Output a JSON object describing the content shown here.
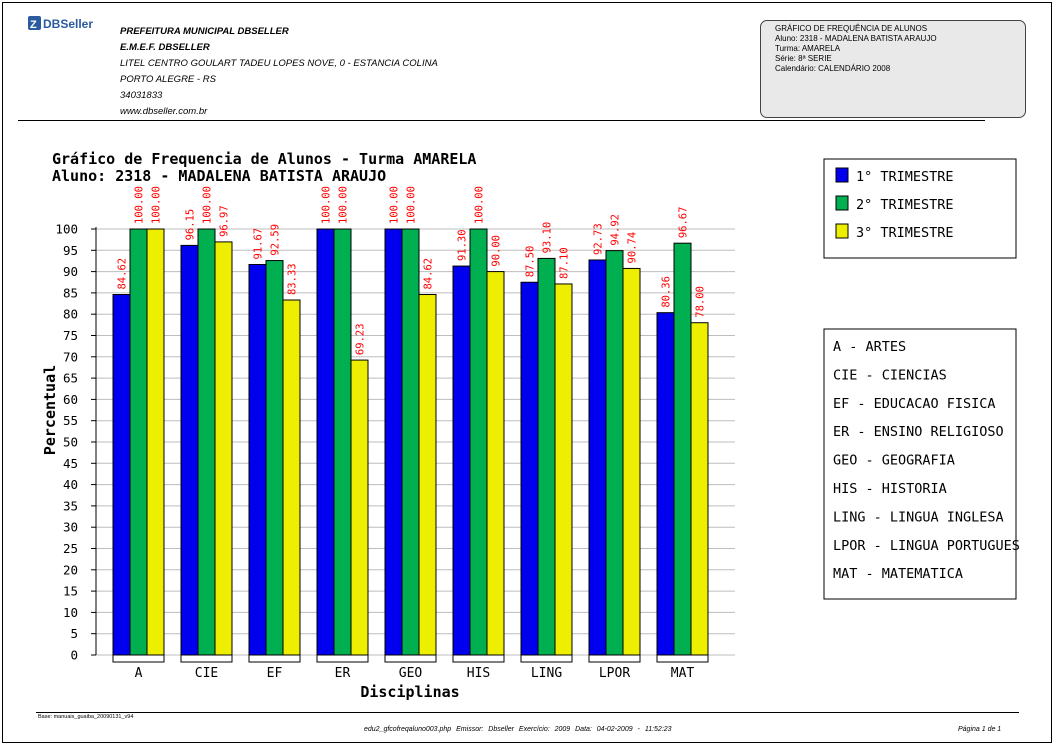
{
  "brand": {
    "logo_text": "DBSeller"
  },
  "header": {
    "org_lines": [
      "PREFEITURA MUNICIPAL DBSELLER",
      "E.M.E.F. DBSELLER",
      "LITEL CENTRO GOULART TADEU LOPES NOVE, 0 - ESTANCIA COLINA",
      "PORTO ALEGRE - RS",
      "34031833",
      "www.dbseller.com.br"
    ]
  },
  "info_box": {
    "lines": [
      "GRÁFICO DE FREQUÊNCIA DE ALUNOS",
      "Aluno: 2318 - MADALENA BATISTA ARAUJO",
      "Turma: AMARELA",
      "Série: 8ª SERIE",
      "Calendário: CALENDÁRIO 2008"
    ]
  },
  "footer": {
    "base": "Base: manuais_guaiba_20090131_v94",
    "center": "edu2_gfcofreqaluno003.php    Emissor: Dbseller    Exercício: 2009    Data: 04-02-2009 - 11:52:23",
    "page": "Página 1 de 1"
  },
  "chart_data": {
    "type": "bar",
    "title": "Gráfico de Frequencia de Alunos - Turma AMARELA",
    "subtitle": "Aluno: 2318 - MADALENA BATISTA ARAUJO",
    "xlabel": "Disciplinas",
    "ylabel": "Percentual",
    "ylim": [
      0,
      100
    ],
    "ytick_step": 5,
    "grid": true,
    "legend_position": "right",
    "categories": [
      "A",
      "CIE",
      "EF",
      "ER",
      "GEO",
      "HIS",
      "LING",
      "LPOR",
      "MAT"
    ],
    "series": [
      {
        "name": "1° TRIMESTRE",
        "color": "#0000ee",
        "values": [
          84.62,
          96.15,
          91.67,
          100.0,
          100.0,
          91.3,
          87.5,
          92.73,
          80.36
        ]
      },
      {
        "name": "2° TRIMESTRE",
        "color": "#00b050",
        "values": [
          100.0,
          100.0,
          92.59,
          100.0,
          100.0,
          100.0,
          93.1,
          94.92,
          96.67
        ]
      },
      {
        "name": "3° TRIMESTRE",
        "color": "#eeee00",
        "values": [
          100.0,
          96.97,
          83.33,
          69.23,
          84.62,
          90.0,
          87.1,
          90.74,
          78.0
        ]
      }
    ],
    "label_color": "#ff0000",
    "abbreviations": [
      "A - ARTES",
      "CIE - CIENCIAS",
      "EF - EDUCACAO FISICA",
      "ER - ENSINO RELIGIOSO",
      "GEO - GEOGRAFIA",
      "HIS - HISTORIA",
      "LING - LINGUA INGLESA",
      "LPOR - LINGUA PORTUGUES",
      "MAT - MATEMATICA"
    ]
  }
}
